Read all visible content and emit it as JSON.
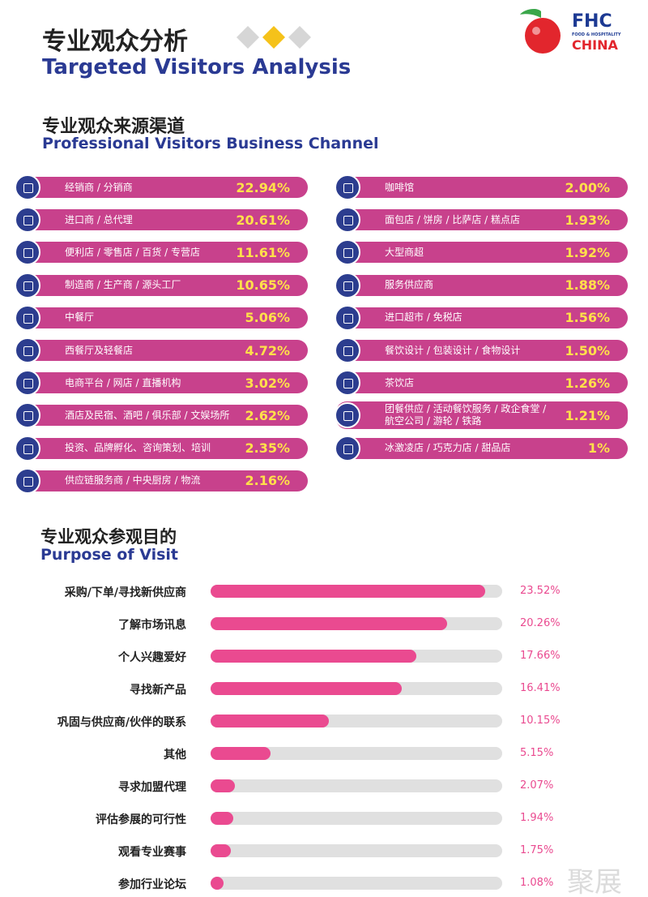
{
  "header": {
    "title_cn": "专业观众分析",
    "title_en": "Targeted Visitors Analysis",
    "logo": {
      "brand": "FHC",
      "tagline": "FOOD & HOSPITALITY",
      "country": "CHINA"
    }
  },
  "channel": {
    "title_cn": "专业观众来源渠道",
    "title_en": "Professional Visitors Business Channel",
    "left": [
      {
        "label": "经销商 / 分销商",
        "value": "22.94%"
      },
      {
        "label": "进口商 / 总代理",
        "value": "20.61%"
      },
      {
        "label": "便利店 / 零售店 / 百货 / 专营店",
        "value": "11.61%"
      },
      {
        "label": "制造商 / 生产商 / 源头工厂",
        "value": "10.65%"
      },
      {
        "label": "中餐厅",
        "value": "5.06%"
      },
      {
        "label": "西餐厅及轻餐店",
        "value": "4.72%"
      },
      {
        "label": "电商平台 / 网店 / 直播机构",
        "value": "3.02%"
      },
      {
        "label": "酒店及民宿、酒吧 / 俱乐部 / 文娱场所",
        "value": "2.62%"
      },
      {
        "label": "投资、品牌孵化、咨询策划、培训",
        "value": "2.35%"
      },
      {
        "label": "供应链服务商 / 中央厨房 / 物流",
        "value": "2.16%"
      }
    ],
    "right": [
      {
        "label": "咖啡馆",
        "value": "2.00%"
      },
      {
        "label": "面包店 / 饼房 / 比萨店 / 糕点店",
        "value": "1.93%"
      },
      {
        "label": "大型商超",
        "value": "1.92%"
      },
      {
        "label": "服务供应商",
        "value": "1.88%"
      },
      {
        "label": "进口超市 / 免税店",
        "value": "1.56%"
      },
      {
        "label": "餐饮设计 / 包装设计 / 食物设计",
        "value": "1.50%"
      },
      {
        "label": "茶饮店",
        "value": "1.26%"
      },
      {
        "label": "团餐供应 / 活动餐饮服务 / 政企食堂 / 航空公司 / 游轮 / 铁路",
        "value": "1.21%"
      },
      {
        "label": "冰激凌店 / 巧克力店 / 甜品店",
        "value": "1%"
      }
    ]
  },
  "chart_data": {
    "type": "bar",
    "title": "专业观众参观目的",
    "subtitle": "Purpose of Visit",
    "categories": [
      "采购/下单/寻找新供应商",
      "了解市场讯息",
      "个人兴趣爱好",
      "寻找新产品",
      "巩固与供应商/伙伴的联系",
      "其他",
      "寻求加盟代理",
      "评估参展的可行性",
      "观看专业赛事",
      "参加行业论坛"
    ],
    "values": [
      23.52,
      20.26,
      17.66,
      16.41,
      10.15,
      5.15,
      2.07,
      1.94,
      1.75,
      1.08
    ],
    "value_labels": [
      "23.52%",
      "20.26%",
      "17.66%",
      "16.41%",
      "10.15%",
      "5.15%",
      "2.07%",
      "1.94%",
      "1.75%",
      "1.08%"
    ],
    "xlim": [
      0,
      25
    ],
    "color": "#ea4a90"
  },
  "watermark": "聚展"
}
